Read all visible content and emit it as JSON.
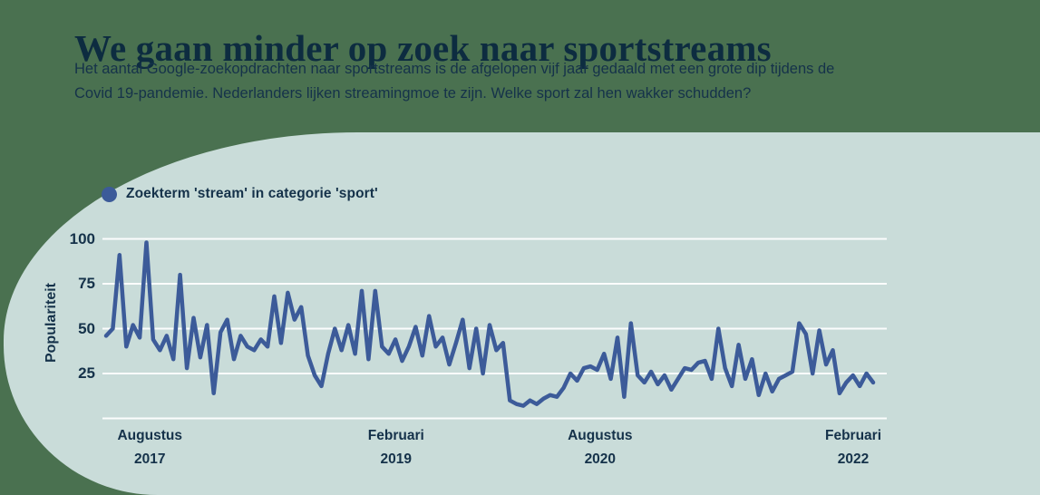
{
  "header": {
    "title": "We gaan minder op zoek naar sportstreams",
    "subtitle_line1": "Het aantal Google-zoekopdrachten naar sportstreams is de afgelopen vijf jaar gedaald met een grote dip tijdens de",
    "subtitle_line2": "Covid 19-pandemie. Nederlanders lijken streamingmoe te zijn. Welke sport zal hen wakker schudden?"
  },
  "legend": {
    "label": "Zoekterm 'stream' in categorie 'sport'"
  },
  "colors": {
    "background": "#4a7150",
    "panel": "#c9dcd9",
    "title_ink": "#0d2c40",
    "ink": "#15324a",
    "line": "#3c5b99",
    "gridline": "#fbfdfd"
  },
  "chart_data": {
    "type": "line",
    "title": "Zoekterm 'stream' in categorie 'sport'",
    "ylabel": "Populariteit",
    "xlabel": "",
    "ylim": [
      0,
      105
    ],
    "y_ticks": [
      100,
      75,
      50,
      25
    ],
    "grid": true,
    "legend_position": "top-left",
    "x_ticks": [
      {
        "line1": "Augustus",
        "line2": "2017",
        "pos": 0.057
      },
      {
        "line1": "Februari",
        "line2": "2019",
        "pos": 0.378
      },
      {
        "line1": "Augustus",
        "line2": "2020",
        "pos": 0.644
      },
      {
        "line1": "Februari",
        "line2": "2022",
        "pos": 0.974
      }
    ],
    "series": [
      {
        "name": "Zoekterm 'stream' in categorie 'sport'",
        "values": [
          46,
          50,
          91,
          40,
          52,
          45,
          98,
          44,
          38,
          46,
          33,
          80,
          28,
          56,
          34,
          52,
          14,
          48,
          55,
          33,
          46,
          40,
          38,
          44,
          40,
          68,
          42,
          70,
          55,
          62,
          35,
          24,
          18,
          36,
          50,
          38,
          52,
          36,
          71,
          33,
          71,
          40,
          36,
          44,
          32,
          40,
          51,
          35,
          57,
          40,
          45,
          30,
          42,
          55,
          28,
          50,
          25,
          52,
          38,
          42,
          10,
          8,
          7,
          10,
          8,
          11,
          13,
          12,
          17,
          25,
          21,
          28,
          29,
          27,
          36,
          22,
          45,
          12,
          53,
          24,
          20,
          26,
          19,
          24,
          16,
          22,
          28,
          27,
          31,
          32,
          22,
          50,
          28,
          18,
          41,
          22,
          33,
          13,
          25,
          15,
          22,
          24,
          26,
          53,
          47,
          25,
          49,
          30,
          38,
          14,
          20,
          24,
          18,
          25,
          20
        ]
      }
    ]
  }
}
